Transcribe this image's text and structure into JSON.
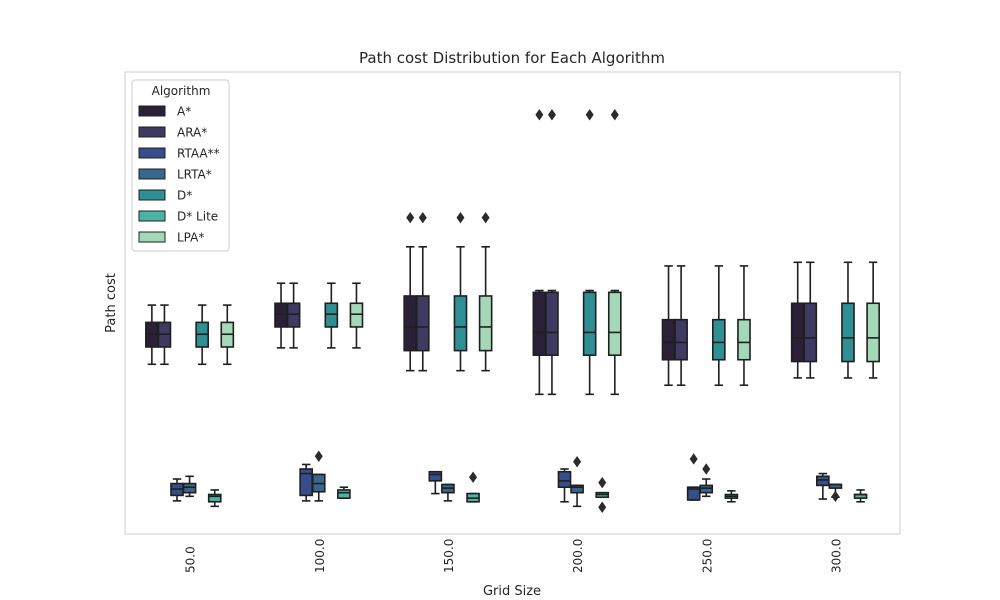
{
  "chart_data": {
    "type": "box",
    "title": "Path cost Distribution for Each Algorithm",
    "xlabel": "Grid Size",
    "ylabel": "Path cost",
    "categories": [
      "50.0",
      "100.0",
      "150.0",
      "200.0",
      "250.0",
      "300.0"
    ],
    "y_ticks_shown": false,
    "grid": false,
    "legend": {
      "title": "Algorithm",
      "position": "top-left"
    },
    "series": [
      {
        "name": "A*",
        "color": "#2a2038",
        "boxes": [
          {
            "category": "50.0",
            "whisker_low": 171,
            "q1": 190,
            "median": 204,
            "q3": 217,
            "whisker_high": 236,
            "outliers": []
          },
          {
            "category": "100.0",
            "whisker_low": 189,
            "q1": 212,
            "median": 226,
            "q3": 238,
            "whisker_high": 260,
            "outliers": []
          },
          {
            "category": "150.0",
            "whisker_low": 164,
            "q1": 186,
            "median": 212,
            "q3": 246,
            "whisker_high": 300,
            "outliers": [
              332
            ]
          },
          {
            "category": "200.0",
            "whisker_low": 138,
            "q1": 181,
            "median": 206,
            "q3": 250,
            "whisker_high": 252,
            "outliers": [
              445
            ]
          },
          {
            "category": "250.0",
            "whisker_low": 148,
            "q1": 176,
            "median": 195,
            "q3": 220,
            "whisker_high": 279,
            "outliers": []
          },
          {
            "category": "300.0",
            "whisker_low": 156,
            "q1": 174,
            "median": 200,
            "q3": 238,
            "whisker_high": 283,
            "outliers": []
          }
        ]
      },
      {
        "name": "ARA*",
        "color": "#3e3a62",
        "boxes": [
          {
            "category": "50.0",
            "whisker_low": 171,
            "q1": 190,
            "median": 204,
            "q3": 217,
            "whisker_high": 236,
            "outliers": []
          },
          {
            "category": "100.0",
            "whisker_low": 189,
            "q1": 212,
            "median": 226,
            "q3": 238,
            "whisker_high": 260,
            "outliers": []
          },
          {
            "category": "150.0",
            "whisker_low": 164,
            "q1": 186,
            "median": 212,
            "q3": 246,
            "whisker_high": 300,
            "outliers": [
              332
            ]
          },
          {
            "category": "200.0",
            "whisker_low": 138,
            "q1": 181,
            "median": 206,
            "q3": 250,
            "whisker_high": 252,
            "outliers": [
              445
            ]
          },
          {
            "category": "250.0",
            "whisker_low": 148,
            "q1": 176,
            "median": 195,
            "q3": 220,
            "whisker_high": 279,
            "outliers": []
          },
          {
            "category": "300.0",
            "whisker_low": 156,
            "q1": 174,
            "median": 200,
            "q3": 238,
            "whisker_high": 283,
            "outliers": []
          }
        ]
      },
      {
        "name": "RTAA**",
        "color": "#364f8c",
        "boxes": [
          {
            "category": "50.0",
            "whisker_low": 21,
            "q1": 27,
            "median": 34,
            "q3": 40,
            "whisker_high": 45,
            "outliers": []
          },
          {
            "category": "100.0",
            "whisker_low": 21,
            "q1": 27,
            "median": 51,
            "q3": 56,
            "whisker_high": 61,
            "outliers": []
          },
          {
            "category": "150.0",
            "whisker_low": 29,
            "q1": 43,
            "median": 50,
            "q3": 53,
            "whisker_high": 53,
            "outliers": []
          },
          {
            "category": "200.0",
            "whisker_low": 20,
            "q1": 36,
            "median": 43,
            "q3": 53,
            "whisker_high": 56,
            "outliers": []
          },
          {
            "category": "250.0",
            "whisker_low": 22,
            "q1": 22,
            "median": 34,
            "q3": 36,
            "whisker_high": 36,
            "outliers": [
              67
            ]
          },
          {
            "category": "300.0",
            "whisker_low": 23,
            "q1": 38,
            "median": 44,
            "q3": 48,
            "whisker_high": 51,
            "outliers": []
          }
        ]
      },
      {
        "name": "LRTA*",
        "color": "#39668f",
        "boxes": [
          {
            "category": "50.0",
            "whisker_low": 26,
            "q1": 30,
            "median": 36,
            "q3": 40,
            "whisker_high": 48,
            "outliers": []
          },
          {
            "category": "100.0",
            "whisker_low": 21,
            "q1": 31,
            "median": 40,
            "q3": 50,
            "whisker_high": 50,
            "outliers": [
              70
            ]
          },
          {
            "category": "150.0",
            "whisker_low": 21,
            "q1": 30,
            "median": 35,
            "q3": 39,
            "whisker_high": 39,
            "outliers": []
          },
          {
            "category": "200.0",
            "whisker_low": 15,
            "q1": 30,
            "median": 36,
            "q3": 38,
            "whisker_high": 38,
            "outliers": [
              64
            ]
          },
          {
            "category": "250.0",
            "whisker_low": 26,
            "q1": 30,
            "median": 35,
            "q3": 38,
            "whisker_high": 45,
            "outliers": [
              56
            ]
          },
          {
            "category": "300.0",
            "whisker_low": 25,
            "q1": 35,
            "median": 39,
            "q3": 39,
            "whisker_high": 39,
            "outliers": [
              26
            ]
          }
        ]
      },
      {
        "name": "D*",
        "color": "#2e8f95",
        "boxes": [
          {
            "category": "50.0",
            "whisker_low": 171,
            "q1": 190,
            "median": 204,
            "q3": 217,
            "whisker_high": 236,
            "outliers": []
          },
          {
            "category": "100.0",
            "whisker_low": 189,
            "q1": 212,
            "median": 226,
            "q3": 238,
            "whisker_high": 260,
            "outliers": []
          },
          {
            "category": "150.0",
            "whisker_low": 164,
            "q1": 186,
            "median": 212,
            "q3": 246,
            "whisker_high": 300,
            "outliers": [
              332
            ]
          },
          {
            "category": "200.0",
            "whisker_low": 138,
            "q1": 181,
            "median": 206,
            "q3": 250,
            "whisker_high": 252,
            "outliers": [
              445
            ]
          },
          {
            "category": "250.0",
            "whisker_low": 148,
            "q1": 176,
            "median": 195,
            "q3": 220,
            "whisker_high": 279,
            "outliers": []
          },
          {
            "category": "300.0",
            "whisker_low": 156,
            "q1": 174,
            "median": 200,
            "q3": 238,
            "whisker_high": 283,
            "outliers": []
          }
        ]
      },
      {
        "name": "D* Lite",
        "color": "#4db3a3",
        "boxes": [
          {
            "category": "50.0",
            "whisker_low": 15,
            "q1": 20,
            "median": 26,
            "q3": 28,
            "whisker_high": 33,
            "outliers": []
          },
          {
            "category": "100.0",
            "whisker_low": 24,
            "q1": 24,
            "median": 30,
            "q3": 33,
            "whisker_high": 36,
            "outliers": []
          },
          {
            "category": "150.0",
            "whisker_low": 20,
            "q1": 20,
            "median": 24,
            "q3": 29,
            "whisker_high": 29,
            "outliers": [
              47
            ]
          },
          {
            "category": "200.0",
            "whisker_low": 25,
            "q1": 25,
            "median": 28,
            "q3": 30,
            "whisker_high": 30,
            "outliers": [
              14,
              41
            ]
          },
          {
            "category": "250.0",
            "whisker_low": 20,
            "q1": 24,
            "median": 26,
            "q3": 28,
            "whisker_high": 32,
            "outliers": []
          },
          {
            "category": "300.0",
            "whisker_low": 20,
            "q1": 24,
            "median": 28,
            "q3": 28,
            "whisker_high": 33,
            "outliers": []
          }
        ]
      },
      {
        "name": "LPA*",
        "color": "#a3d9b8",
        "boxes": [
          {
            "category": "50.0",
            "whisker_low": 171,
            "q1": 190,
            "median": 204,
            "q3": 217,
            "whisker_high": 236,
            "outliers": []
          },
          {
            "category": "100.0",
            "whisker_low": 189,
            "q1": 212,
            "median": 226,
            "q3": 238,
            "whisker_high": 260,
            "outliers": []
          },
          {
            "category": "150.0",
            "whisker_low": 164,
            "q1": 186,
            "median": 212,
            "q3": 246,
            "whisker_high": 300,
            "outliers": [
              332
            ]
          },
          {
            "category": "200.0",
            "whisker_low": 138,
            "q1": 181,
            "median": 206,
            "q3": 250,
            "whisker_high": 252,
            "outliers": [
              445
            ]
          },
          {
            "category": "250.0",
            "whisker_low": 148,
            "q1": 176,
            "median": 195,
            "q3": 220,
            "whisker_high": 279,
            "outliers": []
          },
          {
            "category": "300.0",
            "whisker_low": 156,
            "q1": 174,
            "median": 200,
            "q3": 238,
            "whisker_high": 283,
            "outliers": []
          }
        ]
      }
    ]
  }
}
